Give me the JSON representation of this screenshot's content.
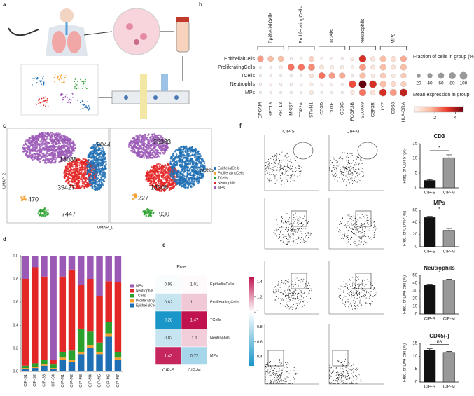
{
  "panel_labels": [
    "a",
    "b",
    "c",
    "d",
    "e",
    "f"
  ],
  "umap": {
    "panels": [
      {
        "title": "CIP-M",
        "labels": [
          "18088",
          "8044",
          "39427",
          "470",
          "7447"
        ]
      },
      {
        "title": "CIP-S",
        "labels": [
          "23383",
          "5085",
          "18308",
          "227",
          "930"
        ]
      }
    ],
    "xlabel": "UMAP_1",
    "ylabel": "UMAP_2",
    "legend": [
      "EpithelialCells",
      "ProliferatingCells",
      "TCells",
      "Neutrophils",
      "MPs"
    ],
    "colors": [
      "#1f6fb4",
      "#f5a030",
      "#2ca02c",
      "#e32626",
      "#9b59b6"
    ]
  },
  "flow": {
    "columns": [
      "CIP-S",
      "CIP-M"
    ]
  },
  "chart_data": [
    {
      "type": "dotplot",
      "groups": [
        "EpithelialCells",
        "ProliferatingCells",
        "TCells",
        "Neutrophils",
        "MPs"
      ],
      "rows": [
        "EpithelialCells",
        "ProliferatingCells",
        "TCells",
        "Neutrophils",
        "MPs"
      ],
      "genes": [
        "EPCAM",
        "KRT19",
        "KRT18",
        "MKI67",
        "TOP2A",
        "STMN1",
        "CD3D",
        "CD3E",
        "CD3G",
        "FCGR3B",
        "S100A9",
        "CSF3R",
        "LYZ",
        "CD68",
        "HLA-DRA"
      ],
      "expression": [
        [
          2,
          1.5,
          1.5,
          0.2,
          0.2,
          1,
          0.1,
          0.1,
          0.1,
          0.3,
          3.5,
          0.5,
          1.5,
          0.6,
          1.8
        ],
        [
          0.1,
          0.1,
          0.2,
          2.5,
          2.5,
          2.2,
          0.5,
          0.3,
          0.3,
          0.2,
          2,
          0.5,
          1.5,
          0.5,
          1.5
        ],
        [
          0.1,
          0.1,
          0.1,
          0.1,
          0.1,
          0.5,
          2.5,
          2,
          1.8,
          0.1,
          1.5,
          0.3,
          1.2,
          0.3,
          1.2
        ],
        [
          0.1,
          0.1,
          0.1,
          0.1,
          0.1,
          0.2,
          0.1,
          0.1,
          0.1,
          3,
          4.8,
          3.5,
          1.5,
          0.8,
          1
        ],
        [
          0.1,
          0.1,
          0.1,
          0.1,
          0.1,
          0.3,
          0.1,
          0.1,
          0.1,
          0.3,
          2.5,
          0.5,
          3.5,
          2,
          3.8
        ]
      ],
      "fraction": [
        [
          60,
          50,
          50,
          5,
          5,
          40,
          5,
          5,
          5,
          15,
          85,
          30,
          60,
          40,
          60
        ],
        [
          5,
          5,
          10,
          70,
          70,
          70,
          25,
          15,
          15,
          10,
          70,
          25,
          60,
          30,
          60
        ],
        [
          5,
          5,
          5,
          5,
          5,
          20,
          75,
          65,
          60,
          5,
          60,
          15,
          50,
          15,
          45
        ],
        [
          5,
          5,
          5,
          5,
          5,
          10,
          5,
          5,
          5,
          85,
          100,
          90,
          60,
          40,
          45
        ],
        [
          5,
          5,
          5,
          5,
          5,
          15,
          5,
          5,
          5,
          20,
          80,
          30,
          90,
          75,
          95
        ]
      ],
      "size_legend_title": "Fraction of cells in group (%)",
      "size_ticks": [
        20,
        40,
        60,
        80,
        100
      ],
      "color_legend_title": "Mean expression in group",
      "clim": [
        0,
        4.8
      ],
      "cticks": [
        2,
        4
      ],
      "colormap": [
        "#fff5f0",
        "#fcbba1",
        "#ef3b2c",
        "#67000d"
      ]
    },
    {
      "type": "stacked_bar",
      "categories": [
        "CIP-S1",
        "CIP-S2",
        "CIP-S3",
        "CIP-S4",
        "CIP-M1",
        "CIP-M2",
        "CIP-M3",
        "CIP-M4",
        "CIP-M5",
        "CIP-M6",
        "CIP-M7"
      ],
      "series": [
        {
          "name": "EpithelialCells",
          "color": "#1f6fb4",
          "values": [
            0.02,
            0.03,
            0.05,
            0.02,
            0.1,
            0.08,
            0.15,
            0.2,
            0.15,
            0.3,
            0.1
          ]
        },
        {
          "name": "ProliferatingCells",
          "color": "#f5a030",
          "values": [
            0.01,
            0.01,
            0.01,
            0.01,
            0.02,
            0.02,
            0.02,
            0.03,
            0.02,
            0.03,
            0.02
          ]
        },
        {
          "name": "TCells",
          "color": "#2ca02c",
          "values": [
            0.02,
            0.03,
            0.04,
            0.03,
            0.05,
            0.08,
            0.2,
            0.12,
            0.08,
            0.1,
            0.05
          ]
        },
        {
          "name": "Neutrophils",
          "color": "#e32626",
          "values": [
            0.75,
            0.83,
            0.72,
            0.04,
            0.65,
            0.7,
            0.38,
            0.45,
            0.4,
            0.35,
            0.6
          ]
        },
        {
          "name": "MPs",
          "color": "#9b59b6",
          "values": [
            0.2,
            0.1,
            0.18,
            0.9,
            0.18,
            0.12,
            0.25,
            0.2,
            0.35,
            0.22,
            0.23
          ]
        }
      ],
      "ylim": [
        0,
        1
      ],
      "yticks": [
        {
          "value": 0,
          "label": "0.0"
        },
        0.2,
        0.4,
        0.6,
        0.8,
        {
          "value": 1,
          "label": "1.0"
        }
      ]
    },
    {
      "type": "heatmap",
      "title": "Role",
      "rows": [
        "EpithelialCells",
        "ProliferatingCells",
        "TCells",
        "Neutrophils",
        "MPs"
      ],
      "columns": [
        "CIP-S",
        "CIP-M"
      ],
      "values": [
        [
          0.98,
          1.01
        ],
        [
          0.82,
          1.11
        ],
        [
          0.28,
          1.47
        ],
        [
          0.82,
          1.1
        ],
        [
          1.43,
          0.72
        ]
      ],
      "clim": [
        0.28,
        1.47
      ],
      "center": 1,
      "cticks": [
        0.4,
        0.6,
        0.8,
        1,
        1.2,
        1.4
      ],
      "colors": [
        "#1a96c8",
        "#ffffff",
        "#c0124f"
      ]
    },
    {
      "type": "bar",
      "title": "CD3",
      "ylabel": "Freq. of CD45⁺(%)",
      "categories": [
        "CIP-S",
        "CIP-M"
      ],
      "values": [
        2.5,
        10.2
      ],
      "errors": [
        0.3,
        1
      ],
      "colors": [
        "#111111",
        "#999999"
      ],
      "ylim": [
        0,
        15
      ],
      "yticks": [
        0,
        5,
        10,
        15
      ],
      "annotation": "*"
    },
    {
      "type": "bar",
      "title": "MPs",
      "ylabel": "Freq. of CD45⁺(%)",
      "categories": [
        "CIP-S",
        "CIP-M"
      ],
      "values": [
        48,
        27
      ],
      "errors": [
        2,
        3
      ],
      "colors": [
        "#111111",
        "#999999"
      ],
      "ylim": [
        0,
        60
      ],
      "yticks": [
        0,
        20,
        40,
        60
      ],
      "annotation": "*"
    },
    {
      "type": "bar",
      "title": "Neutrophils",
      "ylabel": "Freq. of Live cell (%)",
      "categories": [
        "CIP-S",
        "CIP-M"
      ],
      "values": [
        37,
        44
      ],
      "errors": [
        1.5,
        1
      ],
      "colors": [
        "#111111",
        "#999999"
      ],
      "ylim": [
        0,
        50
      ],
      "yticks": [
        0,
        10,
        20,
        30,
        40,
        50
      ],
      "annotation": "*"
    },
    {
      "type": "bar",
      "title": "CD45(-)",
      "ylabel": "Freq. of Live cell (%)",
      "categories": [
        "CIP-S",
        "CIP-M"
      ],
      "values": [
        12.3,
        11.5
      ],
      "errors": [
        0.6,
        0.4
      ],
      "colors": [
        "#111111",
        "#999999"
      ],
      "ylim": [
        0,
        15
      ],
      "yticks": [
        0,
        5,
        10,
        15
      ],
      "annotation": "ns"
    }
  ]
}
